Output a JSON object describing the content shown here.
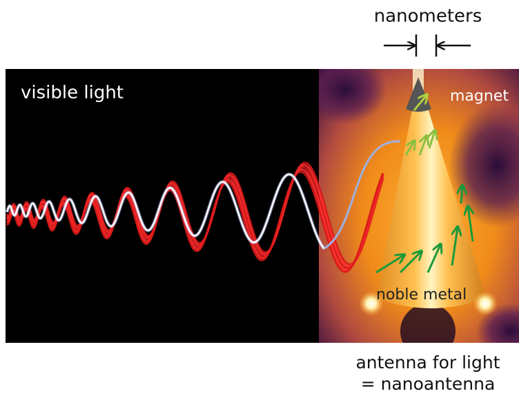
{
  "header": {
    "title": "nanometers"
  },
  "labels": {
    "light": "visible light",
    "tip": "magnet",
    "body": "noble metal"
  },
  "caption": {
    "line1": "antenna for light",
    "line2": "= nanoantenna"
  }
}
